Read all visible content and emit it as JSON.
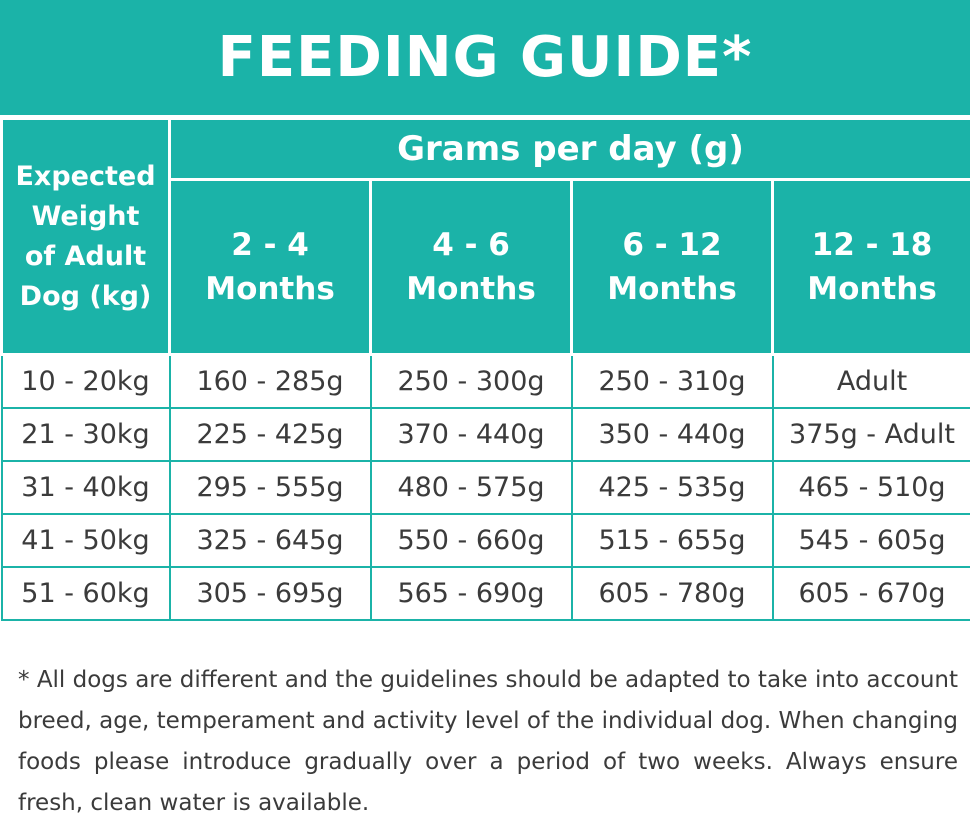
{
  "title": "FEEDING GUIDE*",
  "table": {
    "weight_header_lines": [
      "Expected",
      "Weight",
      "of Adult",
      "Dog (kg)"
    ],
    "grams_header": "Grams per day (g)",
    "age_columns": [
      {
        "range": "2 - 4",
        "unit": "Months"
      },
      {
        "range": "4 - 6",
        "unit": "Months"
      },
      {
        "range": "6 - 12",
        "unit": "Months"
      },
      {
        "range": "12 - 18",
        "unit": "Months"
      }
    ],
    "rows": [
      {
        "weight": "10 - 20kg",
        "values": [
          "160 - 285g",
          "250 - 300g",
          "250 - 310g",
          "Adult"
        ]
      },
      {
        "weight": "21 - 30kg",
        "values": [
          "225 - 425g",
          "370 - 440g",
          "350 - 440g",
          "375g - Adult"
        ]
      },
      {
        "weight": "31 - 40kg",
        "values": [
          "295 - 555g",
          "480 - 575g",
          "425 - 535g",
          "465 - 510g"
        ]
      },
      {
        "weight": "41 - 50kg",
        "values": [
          "325 - 645g",
          "550 - 660g",
          "515 - 655g",
          "545 - 605g"
        ]
      },
      {
        "weight": "51 - 60kg",
        "values": [
          "305 - 695g",
          "565 - 690g",
          "605 - 780g",
          "605 - 670g"
        ]
      }
    ]
  },
  "footnote": "* All dogs are different and the guidelines should be adapted to take into account breed, age, temperament and activity level of the individual dog. When changing foods please introduce gradually over a period of two weeks. Always ensure fresh, clean water is available.",
  "colors": {
    "accent": "#1bb3a8",
    "text": "#3b3b3b"
  }
}
